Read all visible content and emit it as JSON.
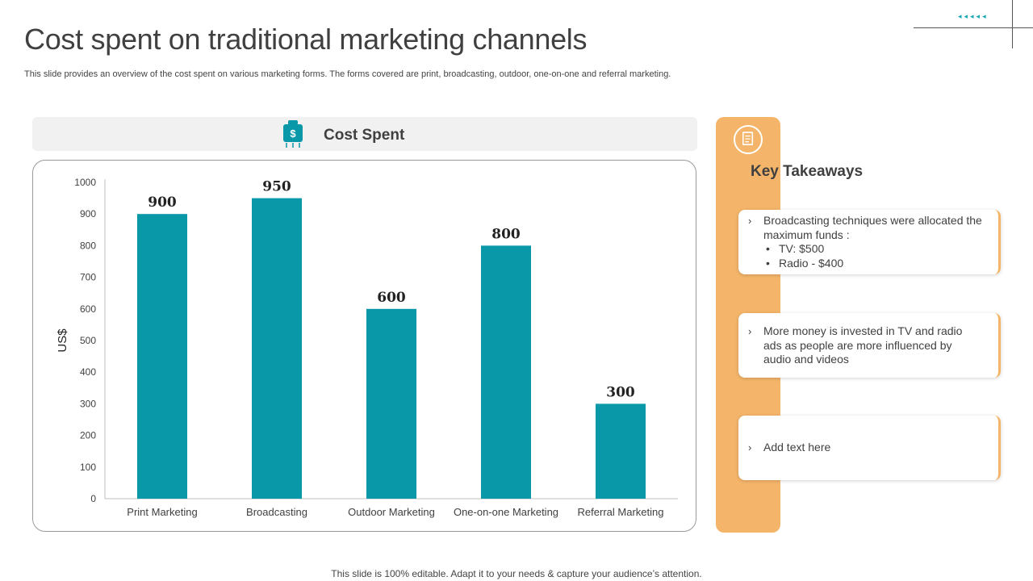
{
  "slide": {
    "title": "Cost spent on traditional marketing channels",
    "subtitle": "This slide provides an overview of the cost spent on various marketing forms. The forms covered are print, broadcasting, outdoor, one-on-one and referral marketing.",
    "footer": "This slide is 100% editable. Adapt it to your needs & capture your audience’s attention."
  },
  "chart_panel": {
    "header": "Cost Spent",
    "header_icon": "money-bag-icon"
  },
  "chart_data": {
    "type": "bar",
    "categories": [
      "Print Marketing",
      "Broadcasting",
      "Outdoor Marketing",
      "One-on-one Marketing",
      "Referral Marketing"
    ],
    "values": [
      900,
      950,
      600,
      800,
      300
    ],
    "ylabel": "US$",
    "ylim": [
      0,
      1000
    ],
    "yticks": [
      0,
      100,
      200,
      300,
      400,
      500,
      600,
      700,
      800,
      900,
      1000
    ],
    "data_labels": true,
    "grid": false,
    "bar_color": "#0998a8"
  },
  "takeaways": {
    "title": "Key Takeaways",
    "icon": "document-icon",
    "cards": [
      {
        "text": "Broadcasting techniques were allocated the maximum funds :",
        "bullets": [
          "TV: $500",
          "Radio - $400"
        ]
      },
      {
        "text": "More money is invested in TV and radio ads as people are more influenced by audio and videos"
      },
      {
        "text": "Add text here"
      }
    ]
  },
  "colors": {
    "accent": "#0998a8",
    "orange": "#f4b56a",
    "title": "#404040"
  }
}
